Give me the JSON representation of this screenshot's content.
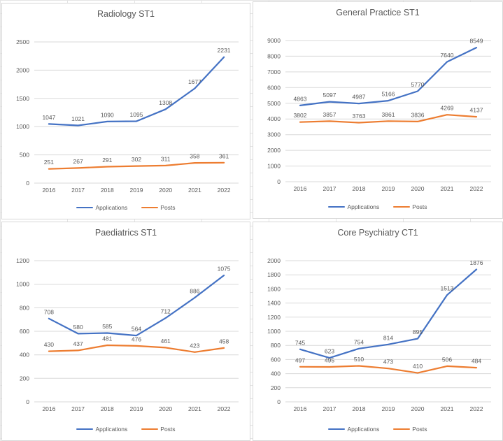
{
  "colors": {
    "applications": "#4472C4",
    "posts": "#ED7D31",
    "text": "#595959",
    "gridline": "#D9D9D9",
    "data_label": "#595959",
    "card_border": "#D7D7D7",
    "sheet_gridline": "#E4E4E4"
  },
  "chart_data": [
    {
      "type": "line",
      "title": "Radiology ST1",
      "categories": [
        "2016",
        "2017",
        "2018",
        "2019",
        "2020",
        "2021",
        "2022"
      ],
      "series": [
        {
          "name": "Applications",
          "color": "#4472C4",
          "values": [
            1047,
            1021,
            1090,
            1095,
            1308,
            1677,
            2231
          ]
        },
        {
          "name": "Posts",
          "color": "#ED7D31",
          "values": [
            251,
            267,
            291,
            302,
            311,
            358,
            361
          ]
        }
      ],
      "yticks": [
        0,
        500,
        1000,
        1500,
        2000,
        2500
      ],
      "ylim": [
        0,
        2500
      ],
      "grid": true,
      "data_labels": true,
      "legend_position": "bottom"
    },
    {
      "type": "line",
      "title": "General Practice ST1",
      "categories": [
        "2016",
        "2017",
        "2018",
        "2019",
        "2020",
        "2021",
        "2022"
      ],
      "series": [
        {
          "name": "Applications",
          "color": "#4472C4",
          "values": [
            4863,
            5097,
            4987,
            5166,
            5770,
            7640,
            8549
          ]
        },
        {
          "name": "Posts",
          "color": "#ED7D31",
          "values": [
            3802,
            3857,
            3763,
            3861,
            3836,
            4269,
            4137
          ]
        }
      ],
      "yticks": [
        0,
        1000,
        2000,
        3000,
        4000,
        5000,
        6000,
        7000,
        8000,
        9000
      ],
      "ylim": [
        0,
        9000
      ],
      "grid": true,
      "data_labels": true,
      "legend_position": "bottom"
    },
    {
      "type": "line",
      "title": "Paediatrics ST1",
      "categories": [
        "2016",
        "2017",
        "2018",
        "2019",
        "2020",
        "2021",
        "2022"
      ],
      "series": [
        {
          "name": "Applications",
          "color": "#4472C4",
          "values": [
            708,
            580,
            585,
            564,
            712,
            886,
            1075
          ]
        },
        {
          "name": "Posts",
          "color": "#ED7D31",
          "values": [
            430,
            437,
            481,
            476,
            461,
            423,
            458
          ]
        }
      ],
      "yticks": [
        0,
        200,
        400,
        600,
        800,
        1000,
        1200
      ],
      "ylim": [
        0,
        1200
      ],
      "grid": true,
      "data_labels": true,
      "legend_position": "bottom"
    },
    {
      "type": "line",
      "title": "Core Psychiatry CT1",
      "categories": [
        "2016",
        "2017",
        "2018",
        "2019",
        "2020",
        "2021",
        "2022"
      ],
      "series": [
        {
          "name": "Applications",
          "color": "#4472C4",
          "values": [
            745,
            623,
            754,
            814,
            895,
            1513,
            1876
          ]
        },
        {
          "name": "Posts",
          "color": "#ED7D31",
          "values": [
            497,
            495,
            510,
            473,
            410,
            506,
            484
          ]
        }
      ],
      "yticks": [
        0,
        200,
        400,
        600,
        800,
        1000,
        1200,
        1400,
        1600,
        1800,
        2000
      ],
      "ylim": [
        0,
        2000
      ],
      "grid": true,
      "data_labels": true,
      "legend_position": "bottom"
    }
  ]
}
